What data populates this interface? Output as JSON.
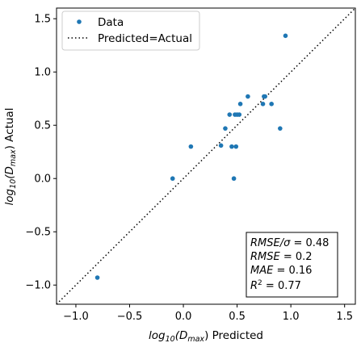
{
  "chart_data": {
    "type": "scatter",
    "xlabel_main": "log",
    "xlabel_sub": "10",
    "xlabel_paren": "(D",
    "xlabel_dsub": "max",
    "xlabel_tail": ") Predicted",
    "ylabel_main": "log",
    "ylabel_sub": "10",
    "ylabel_paren": "(D",
    "ylabel_dsub": "max",
    "ylabel_tail": ") Actual",
    "xlim": [
      -1.18,
      1.6
    ],
    "ylim": [
      -1.18,
      1.6
    ],
    "xticks": [
      -1.0,
      -0.5,
      0.0,
      0.5,
      1.0,
      1.5
    ],
    "yticks": [
      -1.0,
      -0.5,
      0.0,
      0.5,
      1.0,
      1.5
    ],
    "xtick_labels": [
      "−1.0",
      "−0.5",
      "0.0",
      "0.5",
      "1.0",
      "1.5"
    ],
    "ytick_labels": [
      "−1.0",
      "−0.5",
      "0.0",
      "0.5",
      "1.0",
      "1.5"
    ],
    "grid": false,
    "legend_position": "upper-left",
    "legend": {
      "data_label": "Data",
      "line_label": "Predicted=Actual"
    },
    "point_color": "#1f77b4",
    "series": [
      {
        "name": "Data",
        "x": [
          -0.8,
          -0.1,
          0.07,
          0.35,
          0.39,
          0.43,
          0.45,
          0.47,
          0.48,
          0.49,
          0.5,
          0.52,
          0.53,
          0.6,
          0.74,
          0.75,
          0.76,
          0.82,
          0.9,
          0.95
        ],
        "y": [
          -0.93,
          0.0,
          0.3,
          0.31,
          0.47,
          0.6,
          0.3,
          0.0,
          0.6,
          0.3,
          0.6,
          0.6,
          0.7,
          0.77,
          0.7,
          0.77,
          0.77,
          0.7,
          0.47,
          1.34
        ]
      }
    ],
    "reference_line": {
      "from": [
        -1.18,
        -1.18
      ],
      "to": [
        1.6,
        1.6
      ],
      "style": "dotted",
      "color": "#000000"
    },
    "stats": {
      "line1_a": "RMSE/σ",
      "line1_b": " = 0.48",
      "line2_a": "RMSE",
      "line2_b": " = 0.2",
      "line3_a": "MAE",
      "line3_b": " = 0.16",
      "line4_a": "R",
      "line4_sup": "2",
      "line4_b": " = 0.77"
    }
  }
}
